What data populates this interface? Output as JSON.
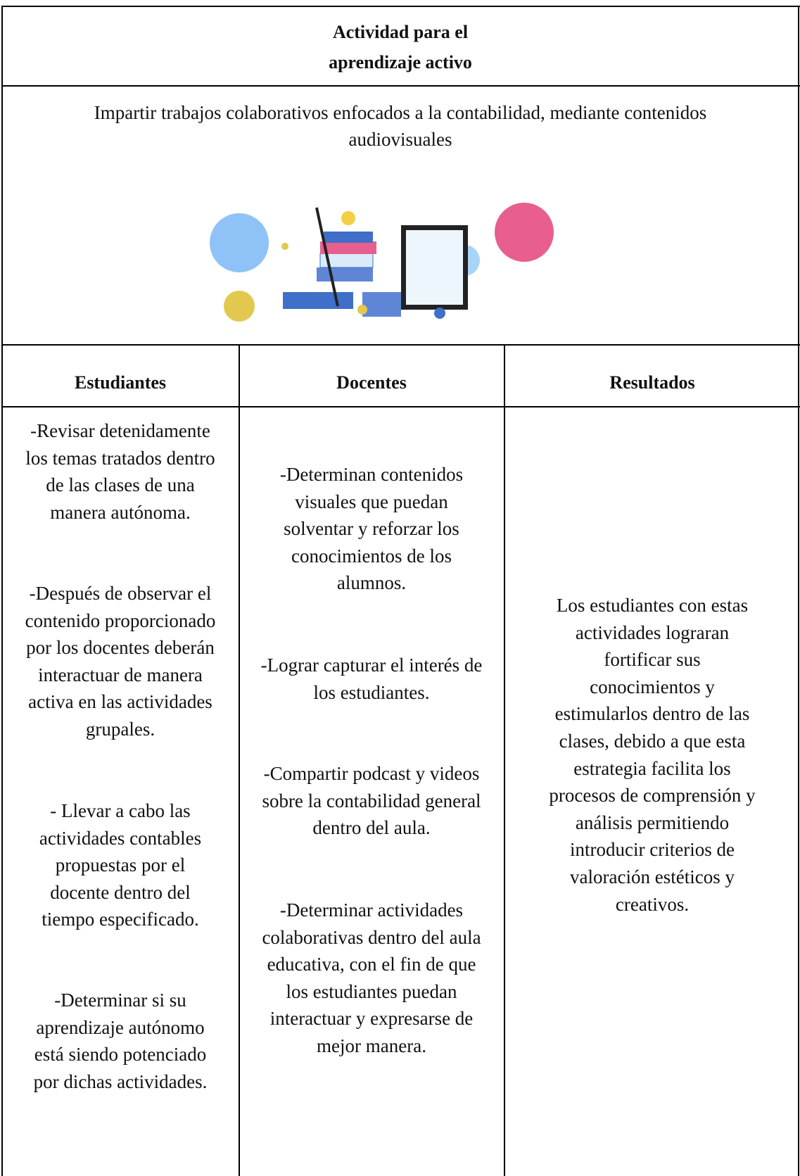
{
  "header": {
    "title_lines": [
      "Actividad para el",
      "aprendizaje activo"
    ]
  },
  "description": [
    "Impartir trabajos colaborativos enfocados a la contabilidad, mediante contenidos",
    "audiovisuales"
  ],
  "table": {
    "headers": [
      "Estudiantes",
      "Docentes",
      "Resultados"
    ],
    "columns": [
      [
        [
          "-Revisar detenidamente",
          "los temas tratados dentro",
          "de las clases de una",
          "manera autónoma."
        ],
        [
          "-Después de observar el",
          "contenido proporcionado",
          "por los docentes deberán",
          "interactuar de manera",
          "activa en las actividades",
          "grupales."
        ],
        [
          "- Llevar a cabo las",
          "actividades contables",
          "propuestas por el",
          "docente dentro del",
          "tiempo especificado."
        ],
        [
          "-Determinar si su",
          "aprendizaje autónomo",
          "está siendo potenciado",
          "por dichas actividades."
        ]
      ],
      [
        [
          "-Determinan contenidos",
          "visuales que puedan",
          "solventar y reforzar los",
          "conocimientos de los",
          "alumnos."
        ],
        [
          "-Lograr capturar el interés de",
          "los estudiantes."
        ],
        [
          "-Compartir podcast y videos",
          "sobre la contabilidad general",
          "dentro del aula."
        ],
        [
          "-Determinar actividades",
          "colaborativas dentro del aula",
          "educativa, con el fin de que",
          "los estudiantes puedan",
          "interactuar y expresarse de",
          "mejor manera."
        ]
      ],
      [
        [
          "Los estudiantes con estas",
          "actividades lograran",
          "fortificar sus",
          "conocimientos y",
          "estimularlos dentro de las",
          "clases, debido a que esta",
          "estrategia facilita los",
          "procesos de comprensión y",
          "análisis permitiendo",
          "introducir criterios de",
          "valoración estéticos y",
          "creativos."
        ]
      ]
    ]
  }
}
